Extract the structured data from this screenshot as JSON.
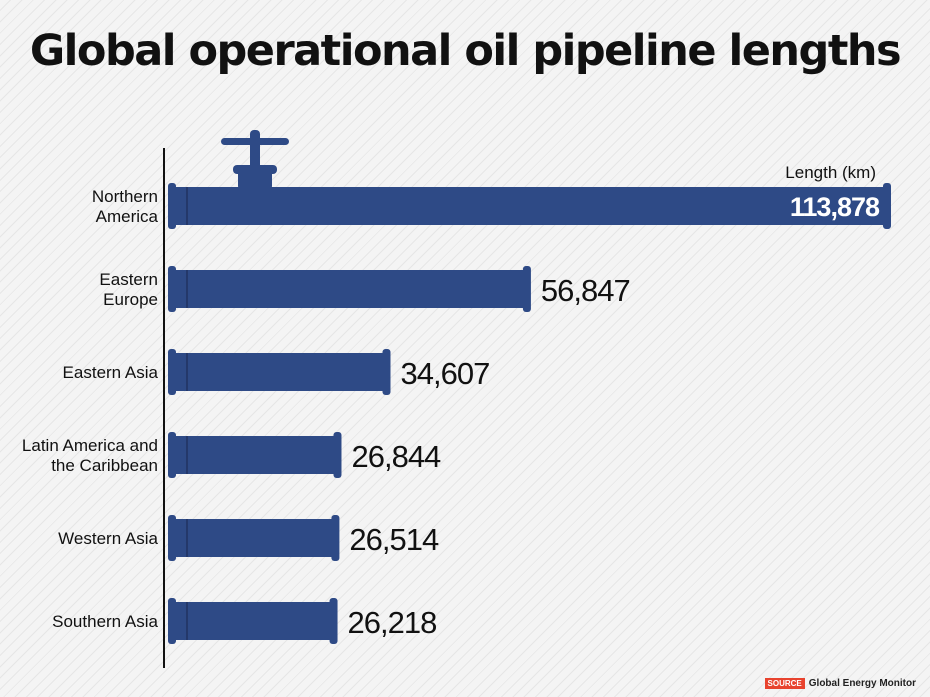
{
  "chart_data": {
    "type": "bar",
    "orientation": "horizontal",
    "title": "Global operational oil pipeline lengths",
    "value_label": "Length (km)",
    "categories": [
      [
        "Northern",
        "America"
      ],
      [
        "Eastern",
        "Europe"
      ],
      [
        "Eastern Asia"
      ],
      [
        "Latin America and",
        "the Caribbean"
      ],
      [
        "Western Asia"
      ],
      [
        "Southern Asia"
      ]
    ],
    "values": [
      113878,
      56847,
      34607,
      26844,
      26514,
      26218
    ],
    "value_labels": [
      "113,878",
      "56,847",
      "34,607",
      "26,844",
      "26,514",
      "26,218"
    ],
    "xlim": [
      0,
      113878
    ],
    "bar_color": "#2e4a86",
    "highlight_label_color": "#ffffff"
  },
  "source": {
    "tag": "SOURCE",
    "text": "Global Energy Monitor"
  }
}
